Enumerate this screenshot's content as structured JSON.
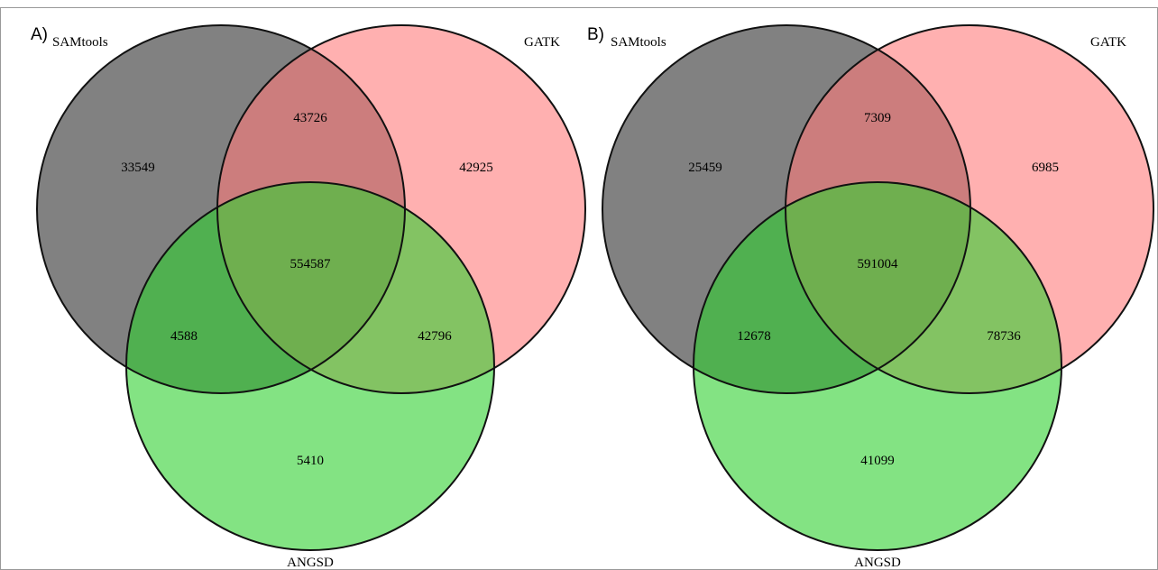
{
  "colors": {
    "samtools": "#7a7a7a",
    "gatk": "#ff7b7b",
    "angsd": "#7fe67f",
    "outline": "#111111",
    "border": "#999999"
  },
  "panels": [
    {
      "letter": "A)",
      "labels": {
        "samtools": "SAMtools",
        "gatk": "GATK",
        "angsd": "ANGSD"
      },
      "counts": {
        "samtools_only": "33549",
        "gatk_only": "42925",
        "angsd_only": "5410",
        "samtools_gatk": "43726",
        "samtools_angsd": "4588",
        "gatk_angsd": "42796",
        "all_three": "554587"
      }
    },
    {
      "letter": "B)",
      "labels": {
        "samtools": "SAMtools",
        "gatk": "GATK",
        "angsd": "ANGSD"
      },
      "counts": {
        "samtools_only": "25459",
        "gatk_only": "6985",
        "angsd_only": "41099",
        "samtools_gatk": "7309",
        "samtools_angsd": "12678",
        "gatk_angsd": "78736",
        "all_three": "591004"
      }
    }
  ]
}
